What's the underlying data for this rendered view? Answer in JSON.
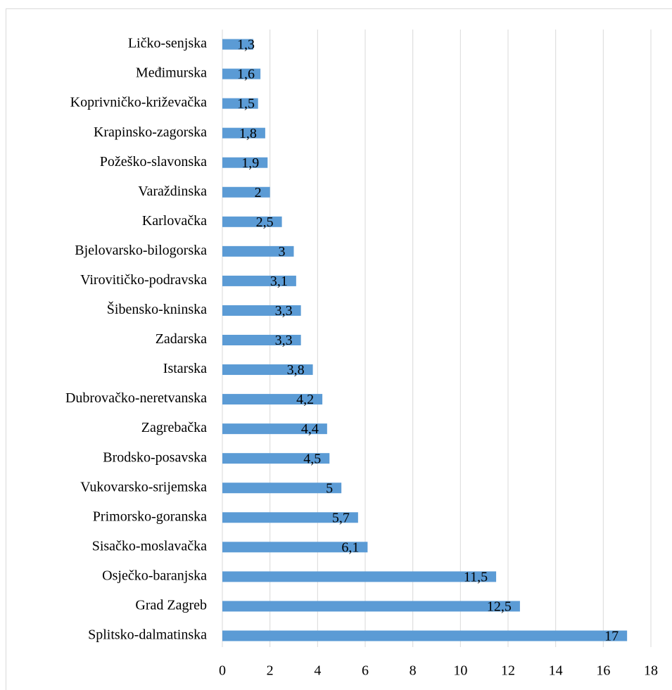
{
  "chart_data": {
    "type": "barh",
    "categories": [
      "Ličko-senjska",
      "Međimurska",
      "Koprivničko-križevačka",
      "Krapinsko-zagorska",
      "Požeško-slavonska",
      "Varaždinska",
      "Karlovačka",
      "Bjelovarsko-bilogorska",
      "Virovitičko-podravska",
      "Šibensko-kninska",
      "Zadarska",
      "Istarska",
      "Dubrovačko-neretvanska",
      "Zagrebačka",
      "Brodsko-posavska",
      "Vukovarsko-srijemska",
      "Primorsko-goranska",
      "Sisačko-moslavačka",
      "Osječko-baranjska",
      "Grad Zagreb",
      "Splitsko-dalmatinska"
    ],
    "values": [
      1.3,
      1.6,
      1.5,
      1.8,
      1.9,
      2,
      2.5,
      3,
      3.1,
      3.3,
      3.3,
      3.8,
      4.2,
      4.4,
      4.5,
      5,
      5.7,
      6.1,
      11.5,
      12.5,
      17
    ],
    "value_labels": [
      "1,3",
      "1,6",
      "1,5",
      "1,8",
      "1,9",
      "2",
      "2,5",
      "3",
      "3,1",
      "3,3",
      "3,3",
      "3,8",
      "4,2",
      "4,4",
      "4,5",
      "5",
      "5,7",
      "6,1",
      "11,5",
      "12,5",
      "17"
    ],
    "color": "#5b9bd5",
    "xlim": [
      0,
      18
    ],
    "xticks": [
      0,
      2,
      4,
      6,
      8,
      10,
      12,
      14,
      16,
      18
    ],
    "grid": true
  }
}
